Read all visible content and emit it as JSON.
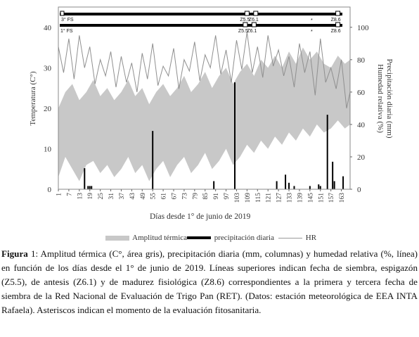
{
  "chart_data": {
    "type": "line",
    "xlabel": "Días desde 1° de junio de 2019",
    "ylabel_left": "Temperatura (C°)",
    "ylabel_right": "Precipitación diaria (mm)\nHumedad relativa (%)",
    "xlim": [
      1,
      168
    ],
    "ylim_left": [
      0,
      45
    ],
    "ylim_right": [
      0,
      112.5
    ],
    "x_ticks": [
      1,
      7,
      13,
      19,
      25,
      31,
      37,
      43,
      49,
      55,
      61,
      67,
      73,
      79,
      85,
      91,
      97,
      103,
      109,
      115,
      121,
      127,
      133,
      139,
      145,
      151,
      157,
      163
    ],
    "y_ticks_left": [
      0,
      10,
      20,
      30,
      40
    ],
    "y_ticks_right": [
      0,
      20,
      40,
      60,
      80,
      100
    ],
    "grid": false,
    "legend": "bottom",
    "series": [
      {
        "name": "Amplitud térmica",
        "type": "area",
        "color": "#c8c8c8",
        "x": [
          1,
          5,
          9,
          13,
          17,
          21,
          25,
          29,
          33,
          37,
          41,
          45,
          49,
          53,
          57,
          61,
          65,
          69,
          73,
          77,
          81,
          85,
          89,
          93,
          97,
          101,
          105,
          109,
          113,
          117,
          121,
          125,
          129,
          133,
          137,
          141,
          145,
          149,
          153,
          157,
          161,
          165,
          168
        ],
        "low": [
          3,
          8,
          5,
          2,
          6,
          7,
          4,
          6,
          3,
          5,
          8,
          4,
          6,
          2,
          5,
          7,
          3,
          6,
          8,
          4,
          6,
          9,
          5,
          7,
          10,
          6,
          8,
          11,
          9,
          12,
          10,
          13,
          11,
          14,
          12,
          15,
          13,
          16,
          14,
          15,
          17,
          15,
          16
        ],
        "high": [
          20,
          24,
          26,
          22,
          24,
          27,
          23,
          25,
          22,
          24,
          27,
          23,
          25,
          21,
          24,
          26,
          23,
          25,
          28,
          24,
          26,
          29,
          25,
          28,
          30,
          26,
          29,
          31,
          28,
          32,
          30,
          33,
          30,
          34,
          31,
          35,
          32,
          34,
          31,
          30,
          33,
          31,
          32
        ]
      },
      {
        "name": "precipitación diaria",
        "type": "bar",
        "color": "#000000",
        "x": [
          16,
          18,
          19,
          20,
          55,
          90,
          102,
          126,
          131,
          133,
          136,
          145,
          150,
          151,
          155,
          158,
          159,
          164
        ],
        "values": [
          13,
          2,
          2,
          2,
          36,
          5,
          66,
          5,
          9,
          4,
          2,
          2,
          3,
          2,
          46,
          17,
          5,
          8
        ]
      },
      {
        "name": "HR",
        "type": "line",
        "color": "#8f8f8f",
        "x": [
          1,
          4,
          7,
          10,
          13,
          16,
          19,
          22,
          25,
          28,
          31,
          34,
          37,
          40,
          43,
          46,
          49,
          52,
          55,
          58,
          61,
          64,
          67,
          70,
          73,
          76,
          79,
          82,
          85,
          88,
          91,
          94,
          97,
          100,
          103,
          106,
          109,
          112,
          115,
          118,
          121,
          124,
          127,
          130,
          133,
          136,
          139,
          142,
          145,
          148,
          151,
          154,
          157,
          160,
          163,
          166,
          168
        ],
        "values": [
          88,
          72,
          93,
          68,
          95,
          75,
          88,
          65,
          80,
          70,
          85,
          63,
          82,
          66,
          78,
          60,
          84,
          68,
          90,
          64,
          76,
          70,
          87,
          62,
          80,
          73,
          91,
          67,
          83,
          75,
          95,
          71,
          86,
          66,
          92,
          74,
          97,
          72,
          88,
          69,
          95,
          76,
          86,
          70,
          82,
          63,
          90,
          72,
          85,
          58,
          93,
          66,
          75,
          62,
          80,
          50,
          60
        ]
      }
    ],
    "annotations": {
      "top_bar": {
        "start_label": "3° FS",
        "marks": [
          "Z5.5",
          "Z6.1",
          "*",
          "Z8.6"
        ],
        "x": [
          109,
          114,
          146,
          161
        ]
      },
      "second_bar": {
        "start_label": "1° FS",
        "marks": [
          "Z5.5",
          "Z6.1",
          "*",
          "Z8.6"
        ],
        "x": [
          108,
          113,
          146,
          161
        ]
      }
    }
  },
  "legend": {
    "amplitud": "Amplitud térmica",
    "precip": "precipitación diaria",
    "hr": "HR"
  },
  "caption": {
    "fig": "Figura",
    "rest": " 1: Amplitud térmica (C°, área gris), precipitación diaria (mm, columnas) y humedad relativa (%, línea) en función de los días desde el 1° de junio de 2019. Líneas superiores indican fecha de siembra, espigazón (Z5.5), de antesis (Z6.1) y de madurez fisiológica (Z8.6) correspondientes a la primera y tercera fecha de siembra de la Red Nacional de Evaluación de Trigo Pan (RET). (Datos: estación meteorológica de EEA INTA Rafaela). Asteriscos indican el momento de la evaluación fitosanitaria."
  }
}
